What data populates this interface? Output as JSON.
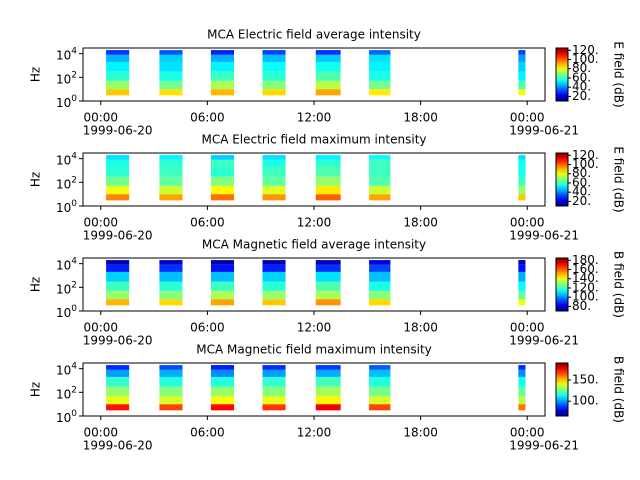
{
  "chart_data": [
    {
      "type": "spectrogram",
      "title": "MCA  Electric field average intensity",
      "y_label": "Hz",
      "colorbar_label": "E field (dB)",
      "x_unit": "hours",
      "xlim": [
        -1,
        25
      ],
      "xticks": [
        {
          "value": 0,
          "label": "00:00"
        },
        {
          "value": 6,
          "label": "06:00"
        },
        {
          "value": 12,
          "label": "12:00"
        },
        {
          "value": 18,
          "label": "18:00"
        },
        {
          "value": 24,
          "label": "00:00"
        }
      ],
      "xtick_dates": [
        {
          "value": 0,
          "label": "1999-06-20"
        },
        {
          "value": 24,
          "label": "1999-06-21"
        }
      ],
      "ylim": [
        1,
        30000
      ],
      "log_y": true,
      "yticks": [
        {
          "value": 1,
          "label": "10^0"
        },
        {
          "value": 100,
          "label": "10^2"
        },
        {
          "value": 10000,
          "label": "10^4"
        }
      ],
      "freq_edges": [
        3,
        10,
        50,
        300,
        2000,
        8000,
        20000
      ],
      "segments": [
        [
          0.3,
          1.6
        ],
        [
          3.3,
          4.6
        ],
        [
          6.2,
          7.5
        ],
        [
          9.1,
          10.4
        ],
        [
          12.1,
          13.5
        ],
        [
          15.1,
          16.3
        ],
        [
          23.5,
          23.9
        ]
      ],
      "values": [
        [
          88,
          70,
          58,
          52,
          45,
          30
        ],
        [
          85,
          66,
          56,
          50,
          48,
          34
        ],
        [
          90,
          72,
          60,
          52,
          44,
          28
        ],
        [
          86,
          68,
          58,
          54,
          46,
          32
        ],
        [
          92,
          74,
          62,
          55,
          47,
          30
        ],
        [
          84,
          66,
          56,
          52,
          50,
          36
        ],
        [
          80,
          62,
          52,
          48,
          42,
          32
        ]
      ],
      "clim": [
        10,
        125
      ],
      "cticks": [
        {
          "value": 20,
          "label": "20."
        },
        {
          "value": 40,
          "label": "40."
        },
        {
          "value": 60,
          "label": "60."
        },
        {
          "value": 80,
          "label": "80."
        },
        {
          "value": 100,
          "label": "100."
        },
        {
          "value": 120,
          "label": "120."
        }
      ]
    },
    {
      "type": "spectrogram",
      "title": "MCA  Electric field maximum intensity",
      "y_label": "Hz",
      "colorbar_label": "E field (dB)",
      "x_unit": "hours",
      "xlim": [
        -1,
        25
      ],
      "xticks": [
        {
          "value": 0,
          "label": "00:00"
        },
        {
          "value": 6,
          "label": "06:00"
        },
        {
          "value": 12,
          "label": "12:00"
        },
        {
          "value": 18,
          "label": "18:00"
        },
        {
          "value": 24,
          "label": "00:00"
        }
      ],
      "xtick_dates": [
        {
          "value": 0,
          "label": "1999-06-20"
        },
        {
          "value": 24,
          "label": "1999-06-21"
        }
      ],
      "ylim": [
        1,
        30000
      ],
      "log_y": true,
      "yticks": [
        {
          "value": 1,
          "label": "10^0"
        },
        {
          "value": 100,
          "label": "10^2"
        },
        {
          "value": 10000,
          "label": "10^4"
        }
      ],
      "freq_edges": [
        3,
        10,
        50,
        300,
        2000,
        8000,
        20000
      ],
      "segments": [
        [
          0.3,
          1.6
        ],
        [
          3.3,
          4.6
        ],
        [
          6.2,
          7.5
        ],
        [
          9.1,
          10.4
        ],
        [
          12.1,
          13.5
        ],
        [
          15.1,
          16.3
        ],
        [
          23.5,
          23.9
        ]
      ],
      "values": [
        [
          96,
          80,
          66,
          58,
          56,
          50
        ],
        [
          92,
          76,
          64,
          60,
          58,
          52
        ],
        [
          98,
          82,
          68,
          58,
          60,
          48
        ],
        [
          94,
          78,
          64,
          60,
          56,
          50
        ],
        [
          100,
          84,
          70,
          62,
          58,
          52
        ],
        [
          92,
          76,
          62,
          60,
          60,
          54
        ],
        [
          88,
          70,
          60,
          56,
          54,
          50
        ]
      ],
      "clim": [
        10,
        125
      ],
      "cticks": [
        {
          "value": 20,
          "label": "20."
        },
        {
          "value": 40,
          "label": "40."
        },
        {
          "value": 60,
          "label": "60."
        },
        {
          "value": 80,
          "label": "80."
        },
        {
          "value": 100,
          "label": "100."
        },
        {
          "value": 120,
          "label": "120."
        }
      ]
    },
    {
      "type": "spectrogram",
      "title": "MCA  Magnetic field average intensity",
      "y_label": "Hz",
      "colorbar_label": "B field (dB)",
      "x_unit": "hours",
      "xlim": [
        -1,
        25
      ],
      "xticks": [
        {
          "value": 0,
          "label": "00:00"
        },
        {
          "value": 6,
          "label": "06:00"
        },
        {
          "value": 12,
          "label": "12:00"
        },
        {
          "value": 18,
          "label": "18:00"
        },
        {
          "value": 24,
          "label": "00:00"
        }
      ],
      "xtick_dates": [
        {
          "value": 0,
          "label": "1999-06-20"
        },
        {
          "value": 24,
          "label": "1999-06-21"
        }
      ],
      "ylim": [
        1,
        30000
      ],
      "log_y": true,
      "yticks": [
        {
          "value": 1,
          "label": "10^0"
        },
        {
          "value": 100,
          "label": "10^2"
        },
        {
          "value": 10000,
          "label": "10^4"
        }
      ],
      "freq_edges": [
        3,
        10,
        50,
        300,
        2000,
        8000,
        20000
      ],
      "segments": [
        [
          0.3,
          1.6
        ],
        [
          3.3,
          4.6
        ],
        [
          6.2,
          7.5
        ],
        [
          9.1,
          10.4
        ],
        [
          12.1,
          13.5
        ],
        [
          15.1,
          16.3
        ],
        [
          23.5,
          23.9
        ]
      ],
      "values": [
        [
          150,
          130,
          120,
          108,
          88,
          76
        ],
        [
          146,
          128,
          118,
          106,
          90,
          78
        ],
        [
          152,
          132,
          120,
          106,
          86,
          75
        ],
        [
          148,
          130,
          118,
          108,
          88,
          76
        ],
        [
          154,
          132,
          122,
          110,
          90,
          77
        ],
        [
          146,
          128,
          116,
          106,
          92,
          80
        ],
        [
          140,
          124,
          114,
          104,
          86,
          76
        ]
      ],
      "clim": [
        70,
        185
      ],
      "cticks": [
        {
          "value": 80,
          "label": "80."
        },
        {
          "value": 100,
          "label": "100."
        },
        {
          "value": 120,
          "label": "120."
        },
        {
          "value": 140,
          "label": "140."
        },
        {
          "value": 160,
          "label": "160."
        },
        {
          "value": 180,
          "label": "180."
        }
      ]
    },
    {
      "type": "spectrogram",
      "title": "MCA  Magnetic field maximum intensity",
      "y_label": "Hz",
      "colorbar_label": "B field (dB)",
      "x_unit": "hours",
      "xlim": [
        -1,
        25
      ],
      "xticks": [
        {
          "value": 0,
          "label": "00:00"
        },
        {
          "value": 6,
          "label": "06:00"
        },
        {
          "value": 12,
          "label": "12:00"
        },
        {
          "value": 18,
          "label": "18:00"
        },
        {
          "value": 24,
          "label": "00:00"
        }
      ],
      "xtick_dates": [
        {
          "value": 0,
          "label": "1999-06-20"
        },
        {
          "value": 24,
          "label": "1999-06-21"
        }
      ],
      "ylim": [
        1,
        30000
      ],
      "log_y": true,
      "yticks": [
        {
          "value": 1,
          "label": "10^0"
        },
        {
          "value": 100,
          "label": "10^2"
        },
        {
          "value": 10000,
          "label": "10^4"
        }
      ],
      "freq_edges": [
        3,
        10,
        50,
        300,
        2000,
        8000,
        20000
      ],
      "segments": [
        [
          0.3,
          1.6
        ],
        [
          3.3,
          4.6
        ],
        [
          6.2,
          7.5
        ],
        [
          9.1,
          10.4
        ],
        [
          12.1,
          13.5
        ],
        [
          15.1,
          16.3
        ],
        [
          23.5,
          23.9
        ]
      ],
      "values": [
        [
          172,
          140,
          130,
          118,
          100,
          86
        ],
        [
          166,
          138,
          128,
          116,
          102,
          90
        ],
        [
          174,
          142,
          130,
          116,
          98,
          84
        ],
        [
          168,
          140,
          128,
          118,
          100,
          86
        ],
        [
          176,
          144,
          132,
          120,
          102,
          88
        ],
        [
          166,
          138,
          126,
          116,
          104,
          92
        ],
        [
          160,
          134,
          124,
          114,
          98,
          86
        ]
      ],
      "clim": [
        65,
        190
      ],
      "cticks": [
        {
          "value": 100,
          "label": "100."
        },
        {
          "value": 150,
          "label": "150."
        }
      ]
    }
  ]
}
